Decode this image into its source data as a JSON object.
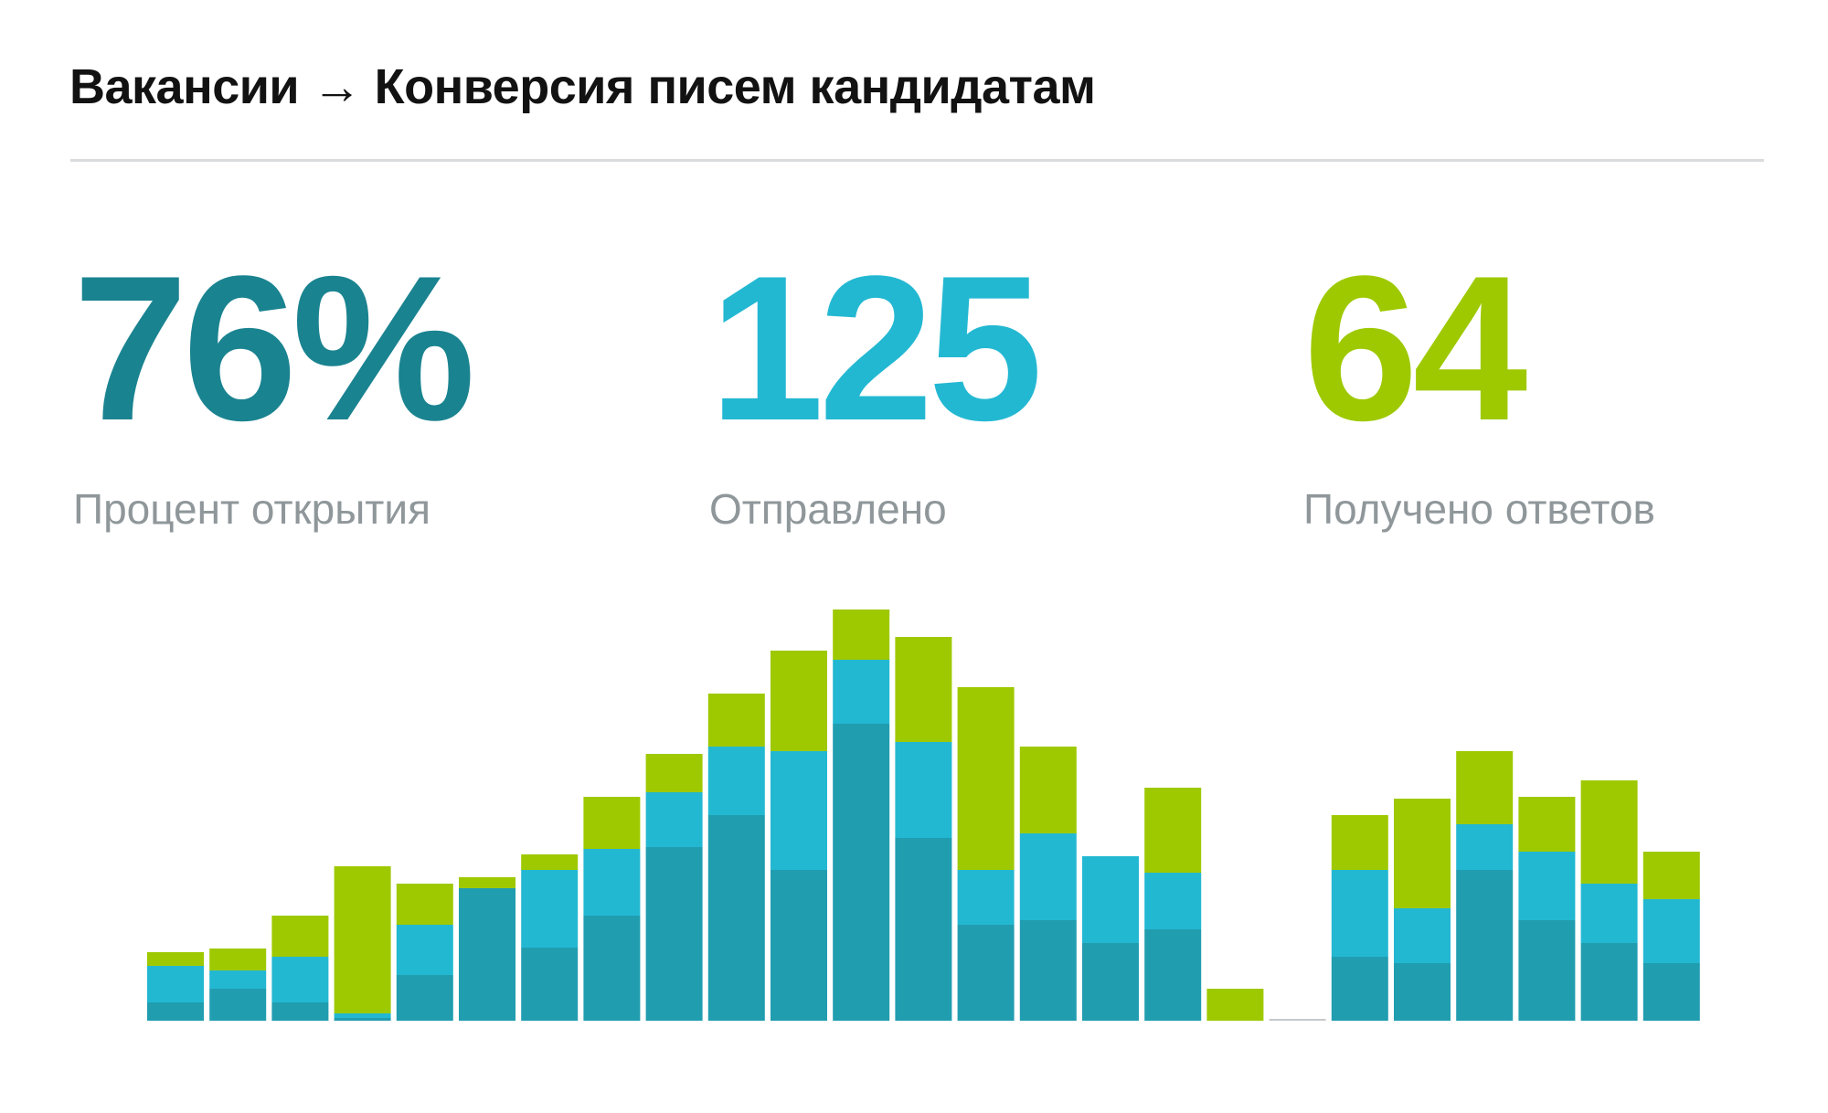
{
  "header": {
    "title": "Вакансии → Конверсия писем кандидатам"
  },
  "metrics": [
    {
      "value": "76%",
      "label": "Процент открытия",
      "color": "#1a8390"
    },
    {
      "value": "125",
      "label": "Отправлено",
      "color": "#23b8d2"
    },
    {
      "value": "64",
      "label": "Получено ответов",
      "color": "#9ec900"
    }
  ],
  "chart_data": {
    "type": "bar",
    "stacked": true,
    "grid": false,
    "legend": "none",
    "colors": [
      "#219db0",
      "#23b8d2",
      "#9ec900"
    ],
    "series": [
      {
        "values": [
          2.0,
          3.5,
          2.0,
          0.3,
          5.0,
          14.5,
          8.0,
          11.5,
          19.0,
          22.5,
          16.5,
          32.5,
          20.0,
          10.5,
          11.0,
          8.5,
          10.0,
          0,
          0,
          7.0,
          6.3,
          16.5,
          11.0,
          8.5,
          6.3
        ]
      },
      {
        "values": [
          4.0,
          2.0,
          5.0,
          0.5,
          5.5,
          0,
          8.5,
          7.3,
          6.0,
          7.5,
          13.0,
          7.0,
          10.5,
          6.0,
          9.5,
          9.5,
          6.2,
          0,
          0,
          9.5,
          6.0,
          5.0,
          7.5,
          6.5,
          7.0
        ]
      },
      {
        "values": [
          1.5,
          2.4,
          4.5,
          16.1,
          4.5,
          1.2,
          1.7,
          5.7,
          4.2,
          5.8,
          11.0,
          5.5,
          11.5,
          20.0,
          9.5,
          0,
          9.3,
          3.5,
          0,
          6.0,
          12.0,
          8.0,
          6.0,
          11.3,
          5.2
        ]
      }
    ]
  }
}
